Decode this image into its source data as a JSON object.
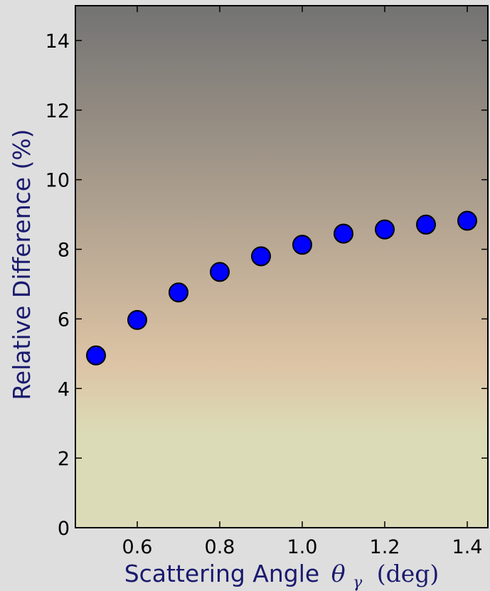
{
  "colors": {
    "figure_background": "#dedede",
    "gradient_top": "#737373",
    "gradient_middle": "#dcc3a4",
    "gradient_bottom": "#dcdbb7",
    "marker_fill": "#0000ff",
    "marker_edge": "#000000",
    "axis_label_color": "#1a1a6e",
    "tick_label_color": "#000000"
  },
  "chart_data": {
    "type": "scatter",
    "x": [
      0.5,
      0.6,
      0.7,
      0.8,
      0.9,
      1.0,
      1.1,
      1.2,
      1.3,
      1.4
    ],
    "y": [
      4.95,
      5.97,
      6.76,
      7.35,
      7.8,
      8.13,
      8.45,
      8.57,
      8.71,
      8.82
    ],
    "xlim": [
      0.45,
      1.45
    ],
    "ylim": [
      0,
      15
    ],
    "xticks": [
      0.6,
      0.8,
      1.0,
      1.2,
      1.4
    ],
    "xtick_labels": [
      "0.6",
      "0.8",
      "1.0",
      "1.2",
      "1.4"
    ],
    "yticks": [
      0,
      2,
      4,
      6,
      8,
      10,
      12,
      14
    ],
    "ytick_labels": [
      "0",
      "2",
      "4",
      "6",
      "8",
      "10",
      "12",
      "14"
    ],
    "xlabel": {
      "text": "Scattering Angle",
      "symbol": "θ",
      "subscript": "γ",
      "unit": "(deg)"
    },
    "ylabel": "Relative Difference (%)",
    "grid": false,
    "legend": "none"
  }
}
